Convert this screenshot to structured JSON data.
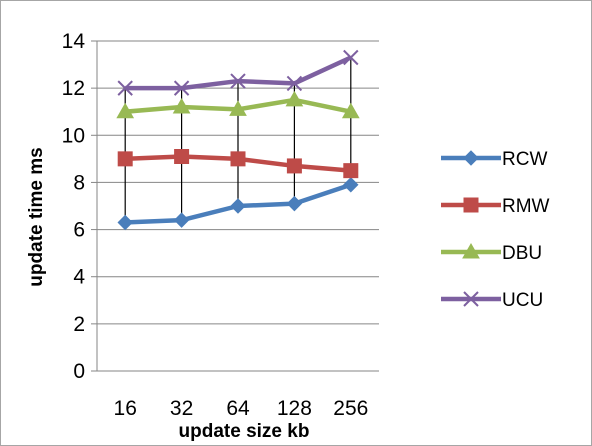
{
  "chart_data": {
    "type": "line",
    "title": "",
    "xlabel": "update size kb",
    "ylabel": "update time ms",
    "categories": [
      "16",
      "32",
      "64",
      "128",
      "256"
    ],
    "ylim": [
      0,
      14
    ],
    "yticks": [
      0,
      2,
      4,
      6,
      8,
      10,
      12,
      14
    ],
    "grid": true,
    "high_low_lines": true,
    "legend_position": "right",
    "series": [
      {
        "name": "RCW",
        "color": "#4a7ebb",
        "marker": "diamond",
        "values": [
          6.3,
          6.4,
          7.0,
          7.1,
          7.9
        ]
      },
      {
        "name": "RMW",
        "color": "#be4b48",
        "marker": "square",
        "values": [
          9.0,
          9.1,
          9.0,
          8.7,
          8.5
        ]
      },
      {
        "name": "DBU",
        "color": "#98b954",
        "marker": "triangle",
        "values": [
          11.0,
          11.2,
          11.1,
          11.5,
          11.0
        ]
      },
      {
        "name": "UCU",
        "color": "#7d60a0",
        "marker": "x",
        "values": [
          12.0,
          12.0,
          12.3,
          12.2,
          13.3
        ]
      }
    ]
  }
}
